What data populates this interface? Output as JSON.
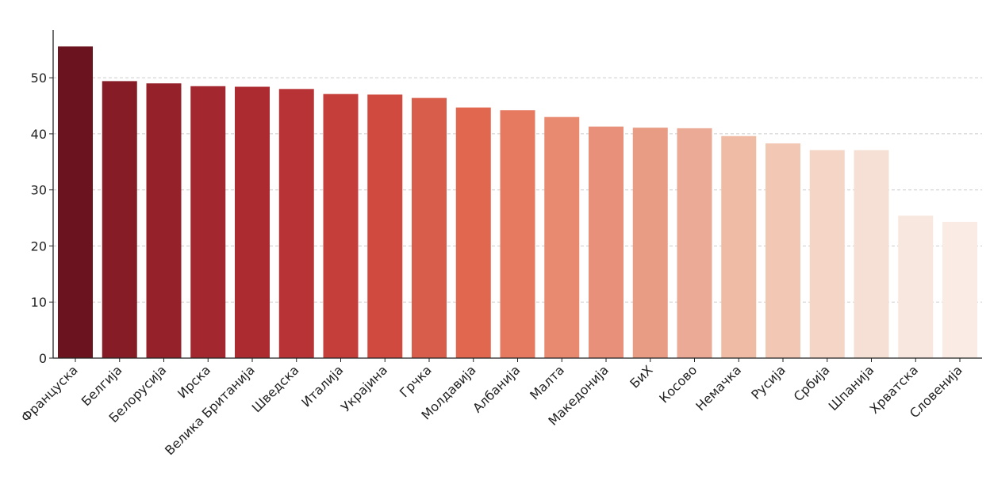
{
  "chart_data": {
    "type": "bar",
    "title": "",
    "xlabel": "",
    "ylabel": "",
    "categories": [
      "Француска",
      "Белгија",
      "Белорусија",
      "Ирска",
      "Велика Британија",
      "Шведска",
      "Италија",
      "Украјина",
      "Грчка",
      "Молдавија",
      "Албанија",
      "Малта",
      "Македонија",
      "БиХ",
      "Косово",
      "Немачка",
      "Русија",
      "Србија",
      "Шпанија",
      "Хрватска",
      "Словенија"
    ],
    "values": [
      55.6,
      49.4,
      49.0,
      48.5,
      48.4,
      48.0,
      47.1,
      47.0,
      46.4,
      44.7,
      44.2,
      43.0,
      41.3,
      41.1,
      41.0,
      39.6,
      38.3,
      37.1,
      37.1,
      25.4,
      24.3
    ],
    "colors": [
      "#6b131e",
      "#861c26",
      "#95222a",
      "#a3272e",
      "#ac2b31",
      "#b83336",
      "#c53e3a",
      "#d04a3f",
      "#d95d4b",
      "#e1674f",
      "#e57a61",
      "#e88a6f",
      "#e8907a",
      "#e89c84",
      "#eaaa95",
      "#efbba5",
      "#f2c8b5",
      "#f4d5c6",
      "#f6e0d5",
      "#f8e7de",
      "#faece4"
    ],
    "yticks": [
      0,
      10,
      20,
      30,
      40,
      50
    ],
    "ylim": [
      0,
      58.5
    ],
    "grid": "horizontal-dashed",
    "legend": "none"
  }
}
